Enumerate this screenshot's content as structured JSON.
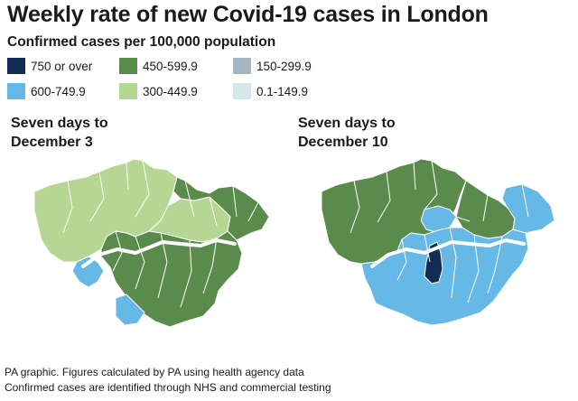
{
  "title": "Weekly rate of new Covid-19 cases in London",
  "subtitle": "Confirmed cases per 100,000 population",
  "legend": [
    {
      "label": "750 or over",
      "color": "#132c55"
    },
    {
      "label": "600-749.9",
      "color": "#66b8e6"
    },
    {
      "label": "450-599.9",
      "color": "#5a8a4c"
    },
    {
      "label": "300-449.9",
      "color": "#b6d694"
    },
    {
      "label": "150-299.9",
      "color": "#a7b5c2"
    },
    {
      "label": "0.1-149.9",
      "color": "#d4e8e8"
    }
  ],
  "maps": [
    {
      "label_line1": "Seven days to",
      "label_line2": "December 3"
    },
    {
      "label_line1": "Seven days to",
      "label_line2": "December 10"
    }
  ],
  "footer": {
    "line1": "PA graphic. Figures calculated by PA using health agency data",
    "line2": "Confirmed cases are identified through NHS and commercial testing"
  }
}
